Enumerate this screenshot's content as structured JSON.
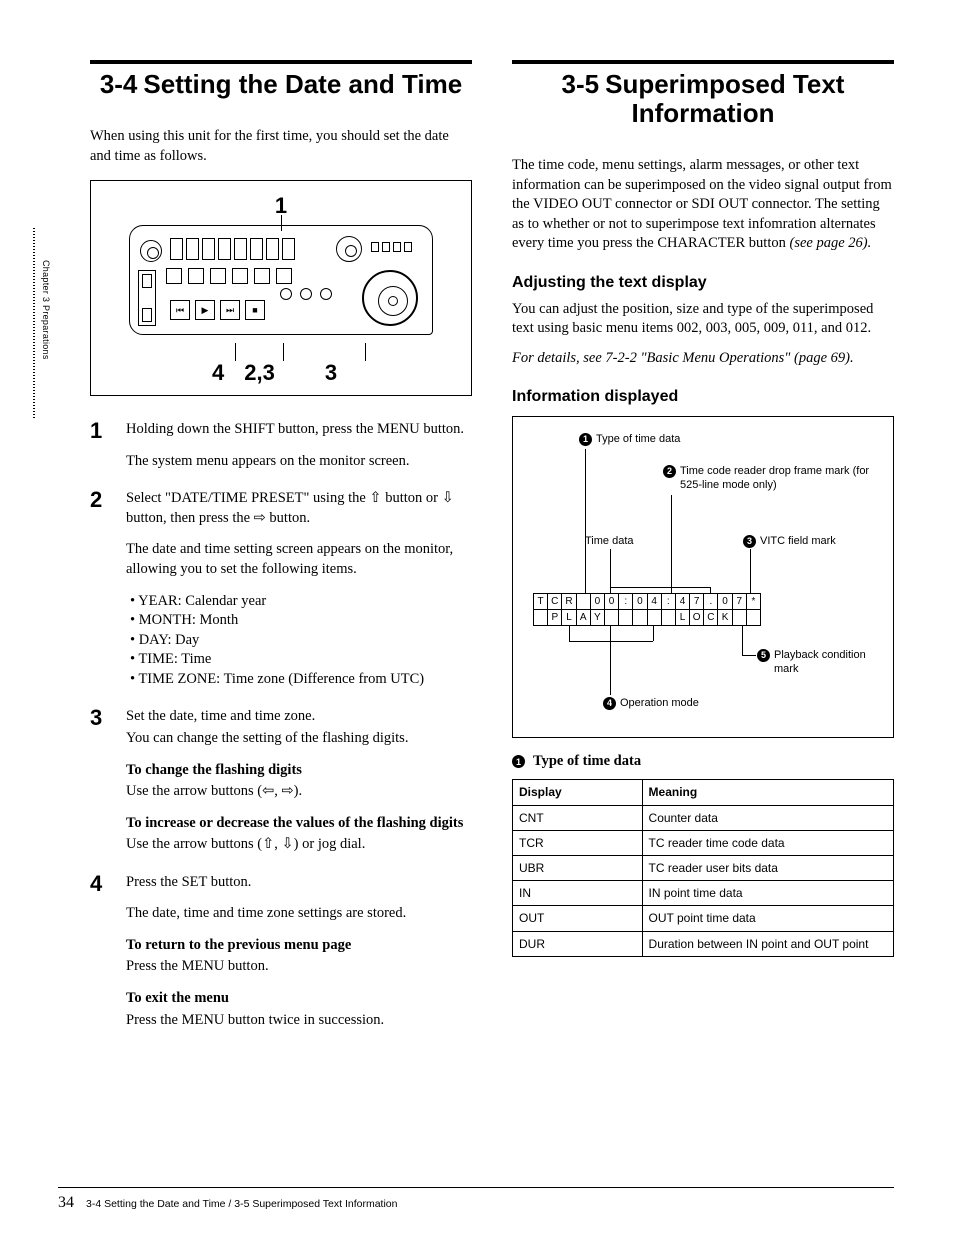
{
  "sidetab": "Chapter 3  Preparations",
  "footer": {
    "page_number": "34",
    "text": "3-4 Setting the Date and Time / 3-5 Superimposed Text Information"
  },
  "left": {
    "section_number": "3-4",
    "section_title": "Setting the Date and Time",
    "intro": "When using this unit for the first time, you should set the date and time as follows.",
    "device_fig": {
      "top_marker": "1",
      "bottom_markers": [
        "4",
        "2,3",
        "3"
      ]
    },
    "steps": [
      {
        "n": "1",
        "paras": [
          "Holding down the SHIFT button, press the MENU button.",
          "The system menu appears on the monitor screen."
        ]
      },
      {
        "n": "2",
        "paras": [
          "Select \"DATE/TIME PRESET\" using the ⇧ button or ⇩ button, then press the ⇨ button.",
          "The date and time setting screen appears on the monitor, allowing you to set the following items."
        ],
        "bullets": [
          "YEAR: Calendar year",
          "MONTH: Month",
          "DAY: Day",
          "TIME: Time",
          "TIME ZONE: Time zone (Difference from UTC)"
        ]
      },
      {
        "n": "3",
        "paras": [
          "Set the date, time and time zone.",
          "You can change the setting of the flashing digits."
        ],
        "subs": [
          {
            "h": "To change the flashing digits",
            "t": "Use the arrow buttons (⇦, ⇨)."
          },
          {
            "h": "To increase or decrease the values of the flashing digits",
            "t": "Use the arrow buttons (⇧, ⇩) or jog dial."
          }
        ]
      },
      {
        "n": "4",
        "paras": [
          " Press the SET button.",
          "The date, time and time zone settings are stored."
        ],
        "subs": [
          {
            "h": "To return to the previous menu page",
            "t": "Press the MENU button."
          },
          {
            "h": "To exit the menu",
            "t": "Press the MENU button twice in succession."
          }
        ]
      }
    ]
  },
  "right": {
    "section_number": "3-5",
    "section_title": "Superimposed Text Information",
    "intro_lines": [
      "The time code, menu settings, alarm messages, or other text information can be superimposed on the video signal output from the VIDEO OUT connector or SDI OUT connector. The setting as to whether or not to superimpose text infomration alternates every time you press the CHARACTER button "
    ],
    "intro_ital": "(see page 26).",
    "adjust_hd": "Adjusting the text display",
    "adjust_body": "You can adjust the position, size and type of the superimposed text using basic menu items 002, 003, 005, 009, 011, and 012.",
    "adjust_ital": "For details, see 7-2-2 \"Basic Menu Operations\" (page 69).",
    "info_hd": "Information displayed",
    "info_fig": {
      "labels": {
        "1": "Type of time data",
        "2": "Time code reader drop frame mark (for 525-line mode only)",
        "left_note": "Time data",
        "3": "VITC field mark",
        "4": "Operation mode",
        "5": "Playback condition mark"
      },
      "grid_row1": [
        "T",
        "C",
        "R",
        "",
        "0",
        "0",
        ":",
        "0",
        "4",
        ":",
        "4",
        "7",
        ".",
        "0",
        "7",
        "*"
      ],
      "grid_row2": [
        "",
        "P",
        "L",
        "A",
        "Y",
        "",
        "",
        "",
        "",
        "",
        "L",
        "O",
        "C",
        "K",
        "",
        ""
      ]
    },
    "legend_title": "Type of time data",
    "table": {
      "columns": [
        "Display",
        "Meaning"
      ],
      "rows": [
        [
          "CNT",
          "Counter data"
        ],
        [
          "TCR",
          "TC reader time code data"
        ],
        [
          "UBR",
          "TC reader user bits data"
        ],
        [
          "IN",
          "IN point time data"
        ],
        [
          "OUT",
          "OUT point time data"
        ],
        [
          "DUR",
          "Duration between IN point and OUT point"
        ]
      ],
      "col_widths_pct": [
        34,
        66
      ],
      "font_size_pt": 9
    },
    "colors": {
      "text": "#000000",
      "bg": "#ffffff",
      "rule": "#000000",
      "border": "#000000"
    }
  }
}
